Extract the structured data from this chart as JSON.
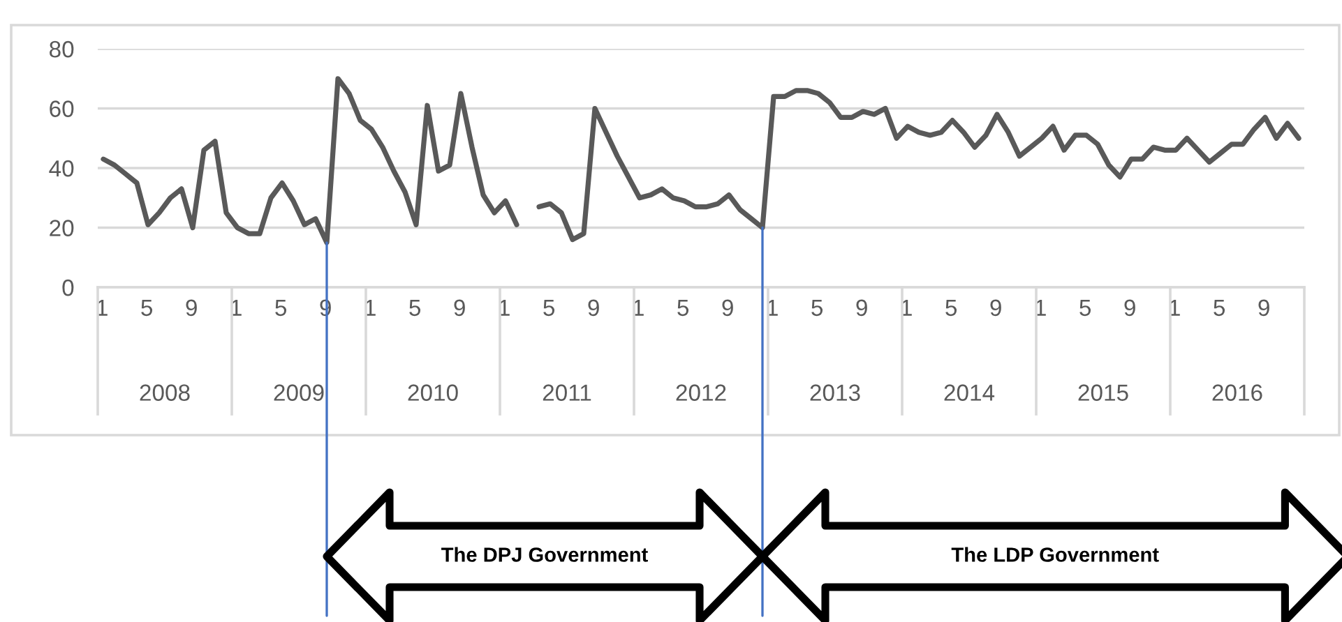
{
  "chart_data": {
    "type": "line",
    "categories": [
      "1",
      null,
      null,
      null,
      "5",
      null,
      null,
      null,
      "9",
      null,
      null,
      null,
      "1",
      null,
      null,
      null,
      "5",
      null,
      null,
      null,
      "9",
      null,
      null,
      null,
      "1",
      null,
      null,
      null,
      "5",
      null,
      null,
      null,
      "9",
      null,
      null,
      null,
      "1",
      null,
      null,
      null,
      "5",
      null,
      null,
      null,
      "9",
      null,
      null,
      null,
      "1",
      null,
      null,
      null,
      "5",
      null,
      null,
      null,
      "9",
      null,
      null,
      null,
      "1",
      null,
      null,
      null,
      "5",
      null,
      null,
      null,
      "9",
      null,
      null,
      null,
      "1",
      null,
      null,
      null,
      "5",
      null,
      null,
      null,
      "9",
      null,
      null,
      null,
      "1",
      null,
      null,
      null,
      "5",
      null,
      null,
      null,
      "9",
      null,
      null,
      null,
      "1",
      null,
      null,
      null,
      "5",
      null,
      null,
      null,
      "9",
      null,
      null,
      null
    ],
    "series": [
      {
        "color": "#595959",
        "values": [
          43,
          41,
          38,
          35,
          21,
          25,
          30,
          33,
          20,
          46,
          49,
          25,
          20,
          18,
          18,
          30,
          35,
          29,
          21,
          23,
          15,
          70,
          65,
          56,
          53,
          47,
          39,
          32,
          21,
          61,
          39,
          41,
          65,
          47,
          31,
          25,
          29,
          21,
          null,
          27,
          28,
          25,
          16,
          18,
          60,
          52,
          44,
          37,
          30,
          31,
          33,
          30,
          29,
          27,
          27,
          28,
          31,
          26,
          23,
          20,
          64,
          64,
          66,
          66,
          65,
          62,
          57,
          57,
          59,
          58,
          60,
          50,
          54,
          52,
          51,
          52,
          56,
          52,
          47,
          51,
          58,
          52,
          44,
          47,
          50,
          54,
          46,
          51,
          51,
          48,
          41,
          37,
          43,
          43,
          47,
          46,
          46,
          50,
          46,
          42,
          45,
          48,
          48,
          53,
          57,
          50,
          55,
          50
        ]
      }
    ],
    "ylim": [
      0,
      80
    ],
    "yticks": [
      0,
      20,
      40,
      60,
      80
    ],
    "grid": "y",
    "legend": false,
    "marker": "none",
    "line_style": "solid",
    "annotations": [
      "2008",
      "2009",
      "2010",
      "2011",
      "2012",
      "2013",
      "2014",
      "2015",
      "2016",
      "The DPJ Government",
      "The LDP Government"
    ]
  }
}
